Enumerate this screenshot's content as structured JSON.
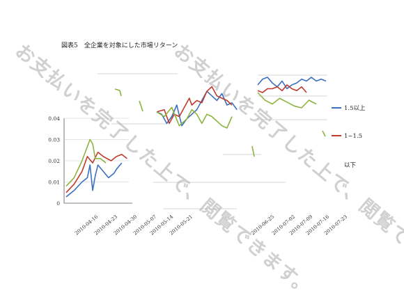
{
  "header": {
    "title": "図表5　全企業を対象にした市場リターン"
  },
  "watermark": {
    "text": "お支払いを完了した上で、閲覧できます。"
  },
  "colors": {
    "blue": "#3b6fbf",
    "red": "#c0392b",
    "green": "#8db33f",
    "grid": "#c8c8c8",
    "axis": "#555555"
  },
  "chart_data": {
    "type": "line",
    "title": "図表5　全企業を対象にした市場リターン",
    "ylabel": "",
    "xlabel": "",
    "ylim": [
      0,
      0.04
    ],
    "y_ticks": [
      "0",
      "0.01",
      "0.02",
      "0.03",
      "0.04"
    ],
    "x_tick_labels": [
      "2010-04-16",
      "2010-04-23",
      "2010-04-30",
      "2010-05-07",
      "2010-05-14",
      "2010-05-21",
      "2010-06-25",
      "2010-07-02",
      "2010-07-09",
      "2010-07-16",
      "2010-07-23"
    ],
    "legend_position": "right",
    "legend_partial": [
      "以下"
    ],
    "series": [
      {
        "name": "1.5以上",
        "color": "#3b6fbf",
        "panels": [
          [
            [
              0,
              0.003
            ],
            [
              3,
              0.006
            ],
            [
              6,
              0.01
            ],
            [
              8,
              0.012
            ],
            [
              9,
              0.018
            ],
            [
              10,
              0.006
            ],
            [
              11,
              0.013
            ],
            [
              12,
              0.018
            ],
            [
              14,
              0.015
            ],
            [
              16,
              0.012
            ],
            [
              18,
              0.014
            ],
            [
              19,
              0.016
            ],
            [
              21,
              0.019
            ]
          ],
          [
            [
              0,
              0.027
            ],
            [
              2,
              0.026
            ],
            [
              4,
              0.022
            ],
            [
              6,
              0.025
            ],
            [
              8,
              0.03
            ],
            [
              10,
              0.021
            ],
            [
              12,
              0.024
            ],
            [
              14,
              0.026
            ],
            [
              16,
              0.028
            ],
            [
              18,
              0.032
            ],
            [
              20,
              0.036
            ],
            [
              22,
              0.034
            ],
            [
              24,
              0.032
            ],
            [
              26,
              0.035
            ],
            [
              28,
              0.03
            ],
            [
              30,
              0.031
            ],
            [
              32,
              0.028
            ]
          ],
          [
            [
              0,
              0.032
            ],
            [
              2,
              0.035
            ],
            [
              4,
              0.036
            ],
            [
              6,
              0.033
            ],
            [
              8,
              0.031
            ],
            [
              10,
              0.034
            ],
            [
              12,
              0.03
            ],
            [
              14,
              0.032
            ],
            [
              16,
              0.033
            ],
            [
              18,
              0.035
            ],
            [
              20,
              0.034
            ],
            [
              22,
              0.036
            ],
            [
              24,
              0.034
            ],
            [
              26,
              0.035
            ],
            [
              28,
              0.034
            ]
          ]
        ]
      },
      {
        "name": "1~1.5",
        "color": "#c0392b",
        "panels": [
          [
            [
              0,
              0.005
            ],
            [
              3,
              0.009
            ],
            [
              6,
              0.015
            ],
            [
              8,
              0.022
            ],
            [
              10,
              0.019
            ],
            [
              12,
              0.024
            ],
            [
              14,
              0.022
            ],
            [
              17,
              0.02
            ],
            [
              19,
              0.022
            ],
            [
              21,
              0.023
            ],
            [
              23,
              0.021
            ]
          ],
          [
            [
              0,
              0.027
            ],
            [
              3,
              0.028
            ],
            [
              5,
              0.022
            ],
            [
              7,
              0.026
            ],
            [
              9,
              0.025
            ],
            [
              11,
              0.029
            ],
            [
              13,
              0.033
            ],
            [
              14,
              0.03
            ],
            [
              16,
              0.032
            ],
            [
              18,
              0.031
            ],
            [
              20,
              0.036
            ],
            [
              22,
              0.038
            ],
            [
              24,
              0.034
            ],
            [
              26,
              0.033
            ],
            [
              28,
              0.032
            ],
            [
              30,
              0.03
            ]
          ],
          [
            [
              0,
              0.029
            ],
            [
              2,
              0.028
            ],
            [
              4,
              0.03
            ],
            [
              6,
              0.03
            ],
            [
              8,
              0.031
            ],
            [
              10,
              0.029
            ],
            [
              12,
              0.032
            ],
            [
              14,
              0.03
            ],
            [
              16,
              0.029
            ],
            [
              18,
              0.031
            ],
            [
              20,
              0.028
            ]
          ]
        ]
      },
      {
        "name": "1以下",
        "color": "#8db33f",
        "panels": [
          [
            [
              0,
              0.008
            ],
            [
              3,
              0.012
            ],
            [
              6,
              0.02
            ],
            [
              9,
              0.03
            ],
            [
              10,
              0.028
            ],
            [
              11,
              0.021
            ],
            [
              13,
              0.021
            ],
            [
              15,
              0.019
            ]
          ],
          [
            [
              0,
              0.027
            ],
            [
              3,
              0.025
            ],
            [
              6,
              0.029
            ],
            [
              9,
              0.021
            ],
            [
              12,
              0.024
            ],
            [
              14,
              0.028
            ],
            [
              16,
              0.026
            ],
            [
              18,
              0.022
            ],
            [
              20,
              0.026
            ],
            [
              22,
              0.025
            ],
            [
              24,
              0.023
            ],
            [
              26,
              0.021
            ],
            [
              28,
              0.02
            ],
            [
              30,
              0.025
            ]
          ],
          [
            [
              0,
              0.028
            ],
            [
              3,
              0.024
            ],
            [
              6,
              0.022
            ],
            [
              9,
              0.025
            ],
            [
              12,
              0.023
            ],
            [
              15,
              0.021
            ],
            [
              18,
              0.02
            ],
            [
              21,
              0.024
            ],
            [
              24,
              0.022
            ]
          ]
        ]
      }
    ]
  }
}
